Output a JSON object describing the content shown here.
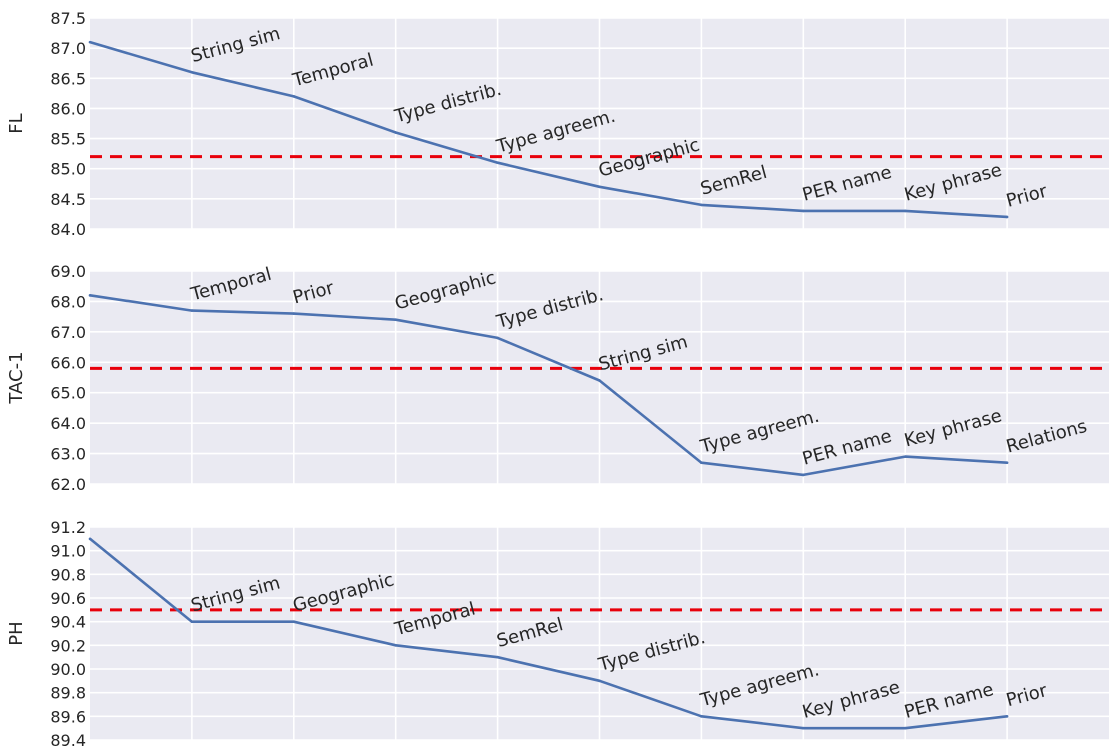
{
  "chart_data": [
    {
      "type": "line",
      "ylabel": "FL",
      "ylim": [
        84.0,
        87.5
      ],
      "yticks": [
        "84.0",
        "84.5",
        "85.0",
        "85.5",
        "86.0",
        "86.5",
        "87.0",
        "87.5"
      ],
      "x": [
        0,
        1,
        2,
        3,
        4,
        5,
        6,
        7,
        8,
        9
      ],
      "values": [
        87.1,
        86.6,
        86.2,
        85.6,
        85.1,
        84.7,
        84.4,
        84.3,
        84.3,
        84.2
      ],
      "annotations": [
        "String sim",
        "Temporal",
        "Type distrib.",
        "Type agreem.",
        "Geographic",
        "SemRel",
        "PER name",
        "Key phrase",
        "Prior"
      ],
      "baseline": 85.2,
      "grid": true,
      "legend": "none",
      "colors": {
        "line": "#4c72b0",
        "baseline": "#e8000b",
        "background": "#eaeaf2"
      }
    },
    {
      "type": "line",
      "ylabel": "TAC-1",
      "ylim": [
        62.0,
        69.0
      ],
      "yticks": [
        "62.0",
        "63.0",
        "64.0",
        "65.0",
        "66.0",
        "67.0",
        "68.0",
        "69.0"
      ],
      "x": [
        0,
        1,
        2,
        3,
        4,
        5,
        6,
        7,
        8,
        9
      ],
      "values": [
        68.2,
        67.7,
        67.6,
        67.4,
        66.8,
        65.4,
        62.7,
        62.3,
        62.9,
        62.7
      ],
      "annotations": [
        "Temporal",
        "Prior",
        "Geographic",
        "Type distrib.",
        "String sim",
        "Type agreem.",
        "PER name",
        "Key phrase",
        "Relations"
      ],
      "baseline": 65.8,
      "grid": true,
      "legend": "none",
      "colors": {
        "line": "#4c72b0",
        "baseline": "#e8000b",
        "background": "#eaeaf2"
      }
    },
    {
      "type": "line",
      "ylabel": "PH",
      "ylim": [
        89.4,
        91.2
      ],
      "yticks": [
        "89.4",
        "89.6",
        "89.8",
        "90.0",
        "90.2",
        "90.4",
        "90.6",
        "90.8",
        "91.0",
        "91.2"
      ],
      "x": [
        0,
        1,
        2,
        3,
        4,
        5,
        6,
        7,
        8,
        9
      ],
      "values": [
        91.1,
        90.4,
        90.4,
        90.2,
        90.1,
        89.9,
        89.6,
        89.5,
        89.5,
        89.6
      ],
      "annotations": [
        "String sim",
        "Geographic",
        "Temporal",
        "SemRel",
        "Type distrib.",
        "Type agreem.",
        "Key phrase",
        "PER name",
        "Prior"
      ],
      "baseline": 90.5,
      "grid": true,
      "legend": "none",
      "colors": {
        "line": "#4c72b0",
        "baseline": "#e8000b",
        "background": "#eaeaf2"
      }
    }
  ]
}
